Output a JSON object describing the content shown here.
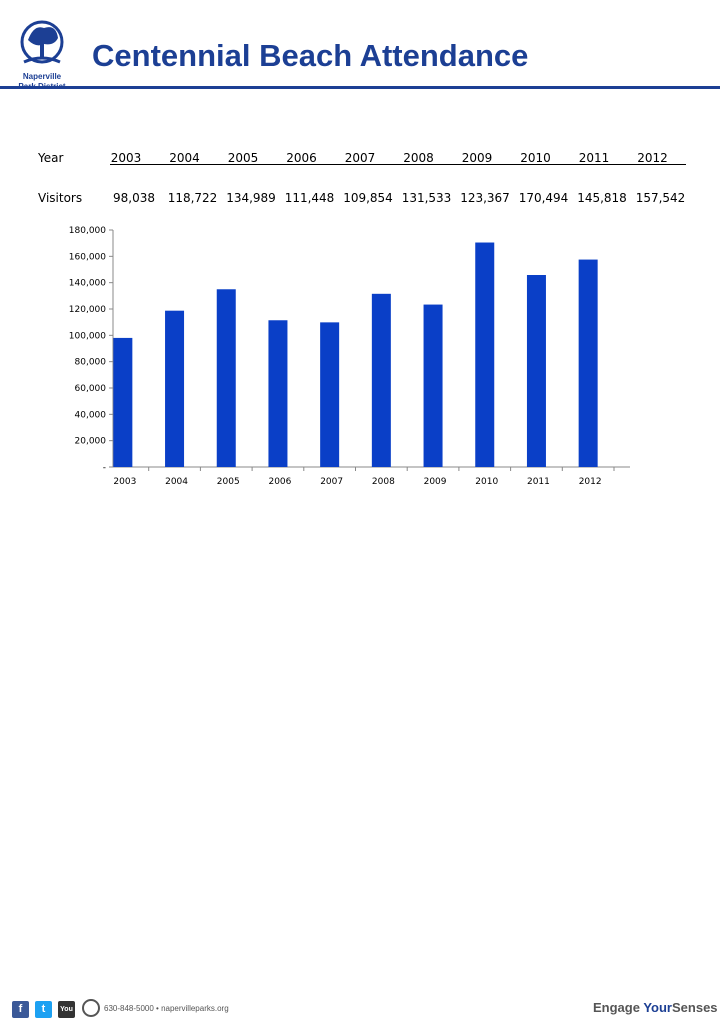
{
  "header": {
    "title": "Centennial Beach Attendance",
    "logo_line1": "Naperville",
    "logo_line2": "Park District"
  },
  "table": {
    "row1_label": "Year",
    "row2_label": "Visitors",
    "years": [
      "2003",
      "2004",
      "2005",
      "2006",
      "2007",
      "2008",
      "2009",
      "2010",
      "2011",
      "2012"
    ],
    "visitors": [
      "98,038",
      "118,722",
      "134,989",
      "111,448",
      "109,854",
      "131,533",
      "123,367",
      "170,494",
      "145,818",
      "157,542"
    ]
  },
  "chart_data": {
    "type": "bar",
    "categories": [
      "2003",
      "2004",
      "2005",
      "2006",
      "2007",
      "2008",
      "2009",
      "2010",
      "2011",
      "2012"
    ],
    "values": [
      98038,
      118722,
      134989,
      111448,
      109854,
      131533,
      123367,
      170494,
      145818,
      157542
    ],
    "ylim": [
      0,
      180000
    ],
    "yticks": [
      "-",
      "20,000",
      "40,000",
      "60,000",
      "80,000",
      "100,000",
      "120,000",
      "140,000",
      "160,000",
      "180,000"
    ],
    "bar_color": "#0a3fc7",
    "grid": false,
    "legend": "none"
  },
  "footer": {
    "contact": "630-848-5000 • napervilleparks.org",
    "tagline_a": "Engage ",
    "tagline_b": "Your",
    "tagline_c": "Senses"
  },
  "colors": {
    "brand": "#1c3f94",
    "bar": "#0a3fc7",
    "facebook": "#3b5998",
    "twitter": "#1da1f2",
    "youtube": "#333333"
  },
  "icons": [
    "tree-logo-icon",
    "facebook-icon",
    "twitter-icon",
    "youtube-icon",
    "city-seal-icon"
  ]
}
